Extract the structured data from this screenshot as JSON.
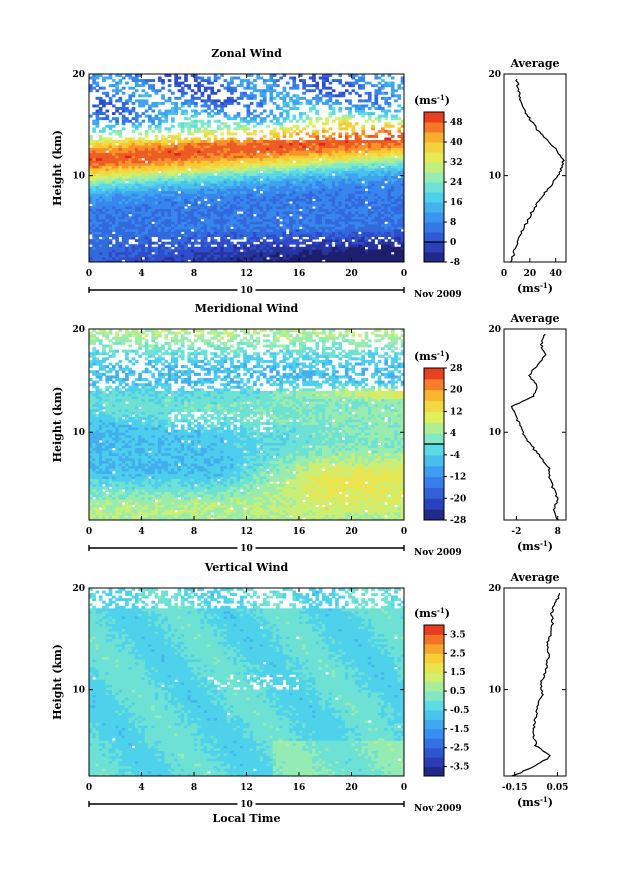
{
  "chart_data": [
    {
      "type": "heatmap",
      "title": "Zonal Wind",
      "xlabel": "",
      "ylabel": "Height (km)",
      "x_ticks": [
        "0",
        "4",
        "8",
        "12",
        "16",
        "20",
        "0"
      ],
      "xlim": [
        0,
        24
      ],
      "y_ticks": [
        "20",
        "10"
      ],
      "ylim": [
        1.5,
        20
      ],
      "date_day": "10",
      "date_label": "Nov 2009",
      "colorbar": {
        "unit": "(ms",
        "unit_sup": "-1",
        "unit_close": ")",
        "levels": [
          -8,
          -4,
          0,
          4,
          8,
          12,
          16,
          20,
          24,
          28,
          32,
          36,
          40,
          44,
          48,
          52
        ],
        "labels": [
          "48",
          "40",
          "32",
          "24",
          "16",
          "8",
          "0",
          "-8"
        ],
        "label_values": [
          48,
          40,
          32,
          24,
          16,
          8,
          0,
          -8
        ],
        "zero_line": 0
      },
      "profile": {
        "title": "Average",
        "x_ticks": [
          "0",
          "20",
          "40"
        ],
        "x_tick_values": [
          0,
          20,
          40
        ],
        "xlim": [
          0,
          48
        ],
        "xlabel": "(ms",
        "xlabel_sup": "-1",
        "xlabel_close": ")",
        "y_ticks": [
          "20",
          "10"
        ],
        "heights": [
          1.5,
          2.5,
          3.5,
          4.5,
          5.5,
          6.5,
          7.5,
          8.5,
          9.5,
          10.5,
          11.5,
          12.5,
          13.5,
          14.5,
          15.5,
          16.5,
          17.5,
          18.5,
          19.5
        ],
        "values": [
          6,
          8,
          10,
          14,
          18,
          22,
          27,
          33,
          39,
          44,
          46,
          41,
          33,
          26,
          20,
          16,
          13,
          11,
          10
        ]
      }
    },
    {
      "type": "heatmap",
      "title": "Meridional Wind",
      "xlabel": "",
      "ylabel": "Height (km)",
      "x_ticks": [
        "0",
        "4",
        "8",
        "12",
        "16",
        "20",
        "0"
      ],
      "xlim": [
        0,
        24
      ],
      "y_ticks": [
        "20",
        "10"
      ],
      "ylim": [
        1.5,
        20
      ],
      "date_day": "10",
      "date_label": "Nov 2009",
      "colorbar": {
        "unit": "(ms",
        "unit_sup": "-1",
        "unit_close": ")",
        "levels": [
          -28,
          -24,
          -20,
          -16,
          -12,
          -8,
          -4,
          0,
          4,
          8,
          12,
          16,
          20,
          24,
          28
        ],
        "labels": [
          "28",
          "20",
          "12",
          "4",
          "-4",
          "-12",
          "-20",
          "-28"
        ],
        "label_values": [
          28,
          20,
          12,
          4,
          -4,
          -12,
          -20,
          -28
        ],
        "zero_line": 0
      },
      "profile": {
        "title": "Average",
        "x_ticks": [
          "-2",
          "8"
        ],
        "x_tick_values": [
          -2,
          8
        ],
        "xlim": [
          -5,
          10
        ],
        "xlabel": "(ms",
        "xlabel_sup": "-1",
        "xlabel_close": ")",
        "y_ticks": [
          "20",
          "10"
        ],
        "heights": [
          1.5,
          2.5,
          3.5,
          4.5,
          5.5,
          6.5,
          7.5,
          8.5,
          9.5,
          10.5,
          11.5,
          12.5,
          13.5,
          14.5,
          15.5,
          16.5,
          17.5,
          18.5,
          19.5
        ],
        "values": [
          8,
          7,
          8,
          7,
          6,
          6,
          4,
          2,
          0,
          -1,
          -2,
          -3,
          2,
          3,
          1,
          3,
          5,
          4,
          5
        ]
      }
    },
    {
      "type": "heatmap",
      "title": "Vertical Wind",
      "xlabel": "Local Time",
      "ylabel": "Height (km)",
      "x_ticks": [
        "0",
        "4",
        "8",
        "12",
        "16",
        "20",
        "0"
      ],
      "xlim": [
        0,
        24
      ],
      "y_ticks": [
        "20",
        "10"
      ],
      "ylim": [
        1.5,
        20
      ],
      "date_day": "10",
      "date_label": "Nov 2009",
      "colorbar": {
        "unit": "(ms",
        "unit_sup": "-1",
        "unit_close": ")",
        "levels": [
          -4,
          -3.5,
          -3,
          -2.5,
          -2,
          -1.5,
          -1,
          -0.5,
          0,
          0.5,
          1,
          1.5,
          2,
          2.5,
          3,
          3.5,
          4
        ],
        "labels": [
          "3.5",
          "2.5",
          "1.5",
          "0.5",
          "-0.5",
          "-1.5",
          "-2.5",
          "-3.5"
        ],
        "label_values": [
          3.5,
          2.5,
          1.5,
          0.5,
          -0.5,
          -1.5,
          -2.5,
          -3.5
        ]
      },
      "profile": {
        "title": "Average",
        "x_ticks": [
          "-0.15",
          "0.05"
        ],
        "x_tick_values": [
          -0.15,
          0.05
        ],
        "xlim": [
          -0.2,
          0.09
        ],
        "xlabel": "(ms",
        "xlabel_sup": "-1",
        "xlabel_close": ")",
        "y_ticks": [
          "20",
          "10"
        ],
        "heights": [
          1.5,
          2.5,
          3.5,
          4.5,
          5.5,
          6.5,
          7.5,
          8.5,
          9.5,
          10.5,
          11.5,
          12.5,
          13.5,
          14.5,
          15.5,
          16.5,
          17.5,
          18.5,
          19.5
        ],
        "values": [
          -0.16,
          -0.05,
          0.02,
          -0.05,
          -0.06,
          -0.06,
          -0.05,
          -0.04,
          -0.02,
          -0.03,
          -0.01,
          0.0,
          0.01,
          0.0,
          0.02,
          0.03,
          0.02,
          0.04,
          0.06
        ]
      }
    }
  ]
}
